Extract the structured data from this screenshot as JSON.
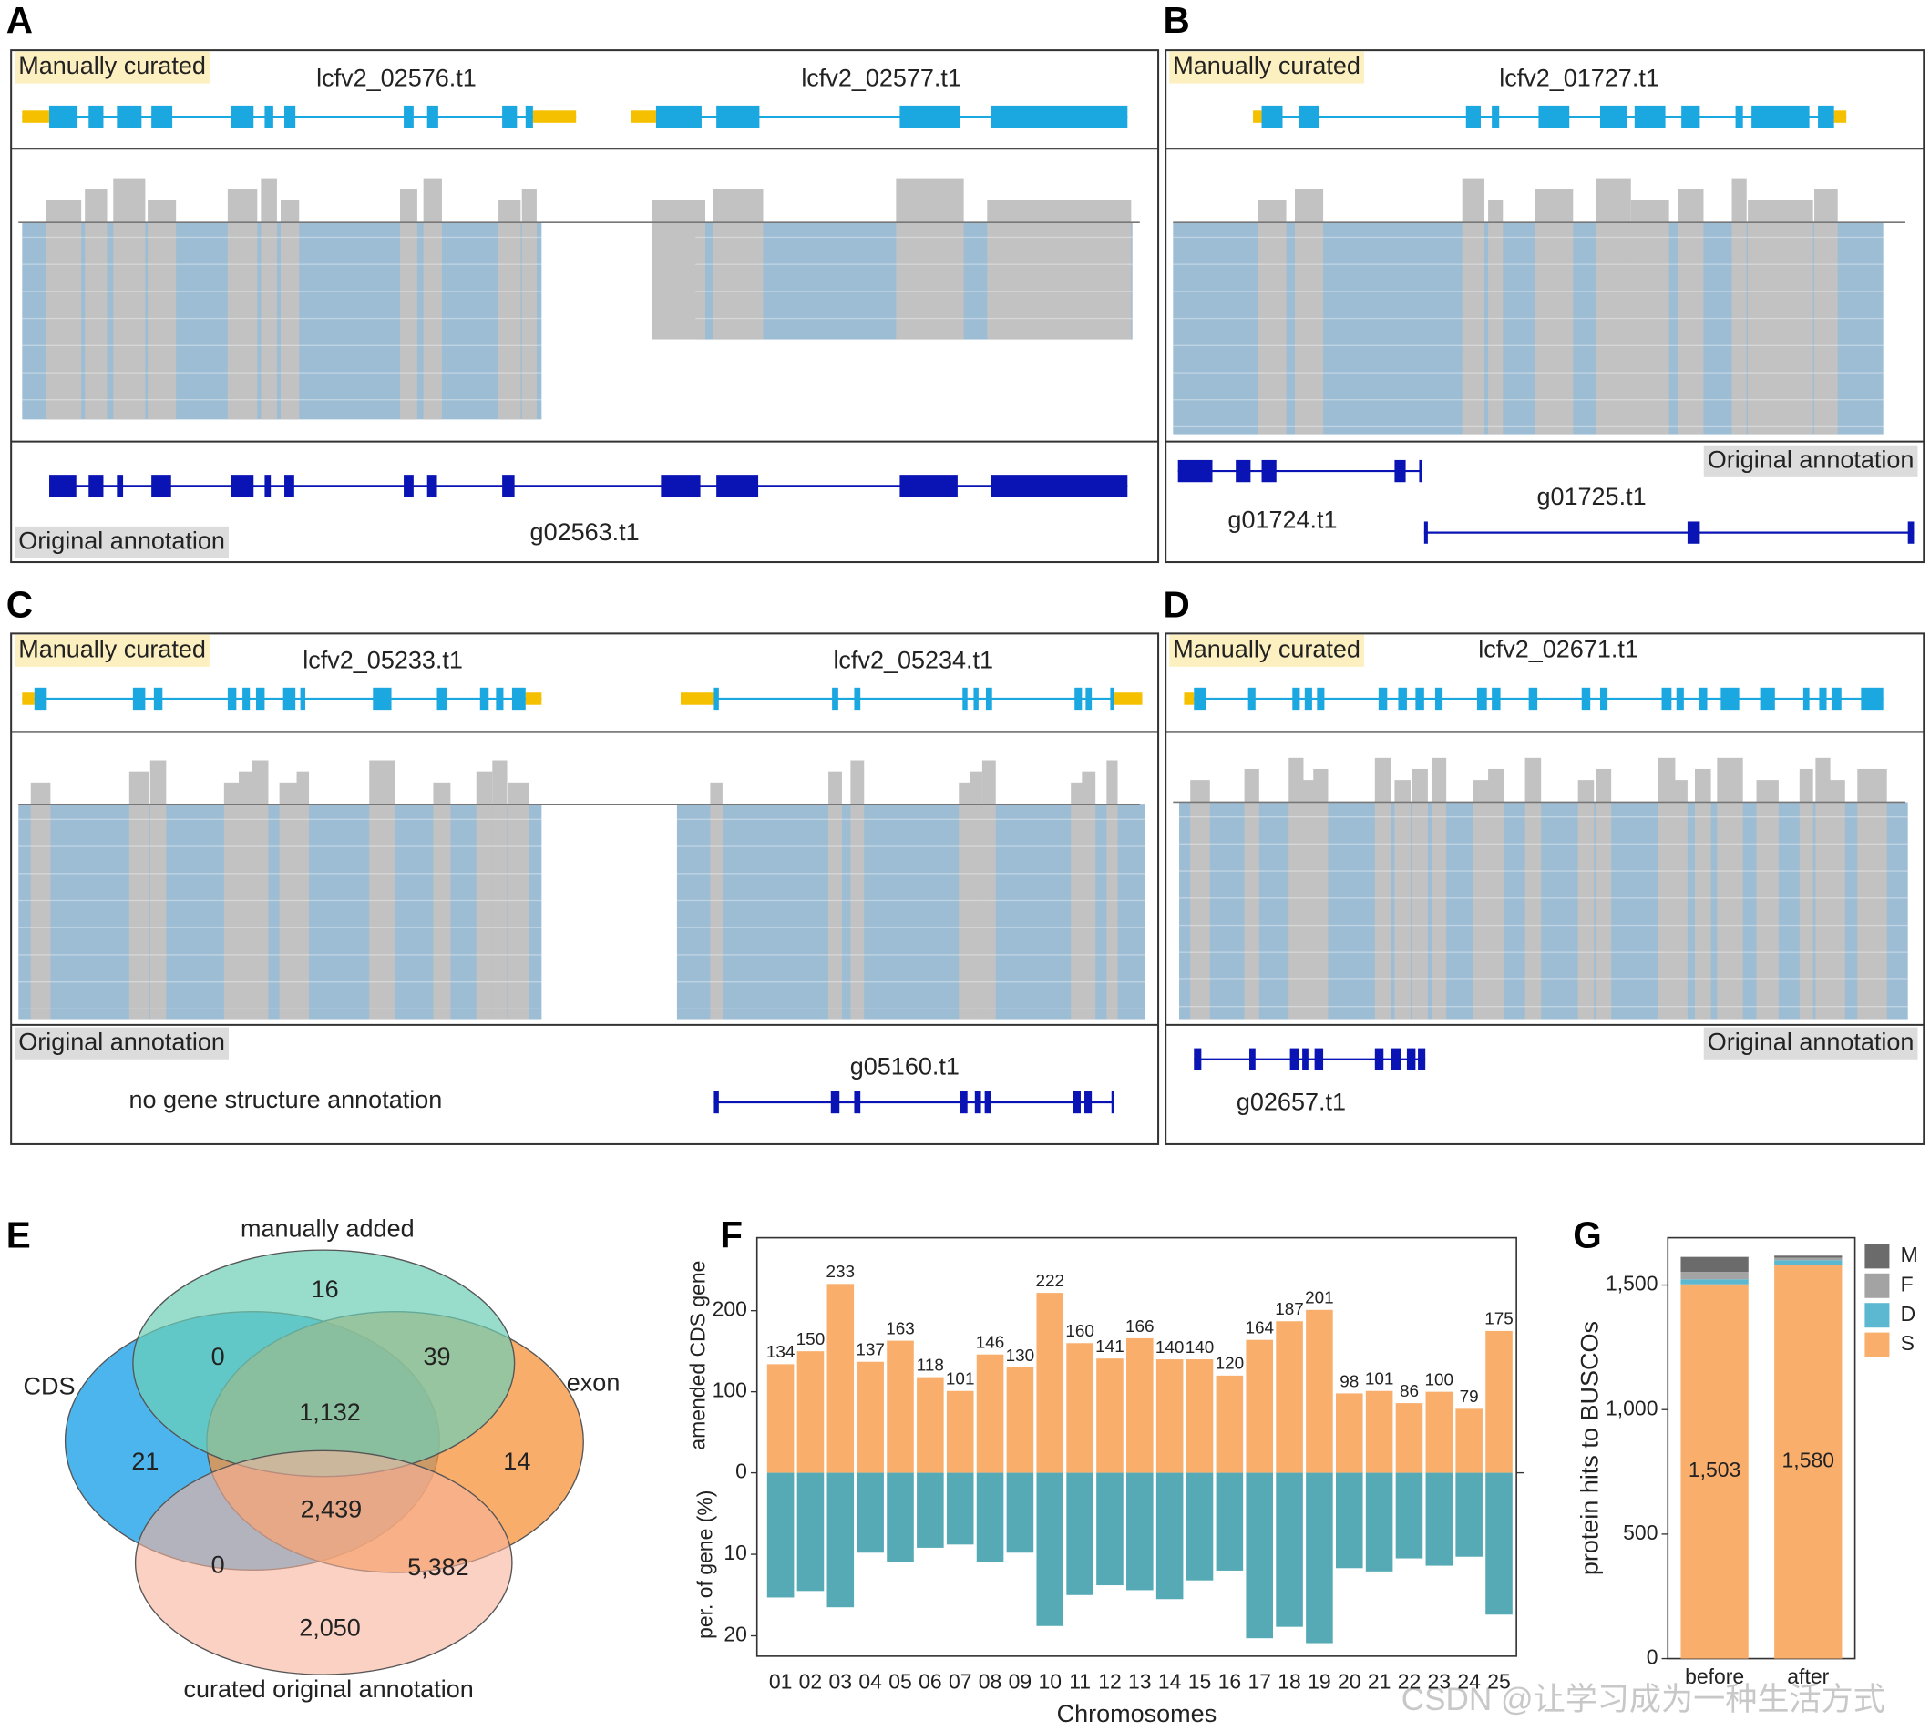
{
  "panels": [
    {
      "letter": "A",
      "curated_label": "Manually curated",
      "curated_genes": [
        "lcfv2_02576.t1",
        "lcfv2_02577.t1"
      ],
      "original_label": "Original annotation",
      "original_genes": [
        "g02563.t1"
      ]
    },
    {
      "letter": "B",
      "curated_label": "Manually curated",
      "curated_genes": [
        "lcfv2_01727.t1"
      ],
      "original_label": "Original annotation",
      "original_genes": [
        "g01724.t1",
        "g01725.t1"
      ]
    },
    {
      "letter": "C",
      "curated_label": "Manually curated",
      "curated_genes": [
        "lcfv2_05233.t1",
        "lcfv2_05234.t1"
      ],
      "original_label": "Original annotation",
      "original_genes": [
        "g05160.t1"
      ],
      "note": "no gene structure annotation"
    },
    {
      "letter": "D",
      "curated_label": "Manually curated",
      "curated_genes": [
        "lcfv2_02671.t1"
      ],
      "original_label": "Original annotation",
      "original_genes": [
        "g02657.t1"
      ]
    }
  ],
  "venn": {
    "letter": "E",
    "sets": [
      "manually added",
      "CDS",
      "exon",
      "curated original annotation"
    ],
    "counts": [
      "16",
      "0",
      "39",
      "1,132",
      "21",
      "14",
      "2,439",
      "0",
      "5,382",
      "2,050"
    ]
  },
  "chart_data": [
    {
      "type": "mirrored_bar",
      "panel_label": "F",
      "xlabel": "Chromosomes",
      "categories": [
        "01",
        "02",
        "03",
        "04",
        "05",
        "06",
        "07",
        "08",
        "09",
        "10",
        "11",
        "12",
        "13",
        "14",
        "15",
        "16",
        "17",
        "18",
        "19",
        "20",
        "21",
        "22",
        "23",
        "24",
        "25"
      ],
      "series": [
        {
          "ylabel": "amended CDS gene",
          "direction": "up",
          "color": "#f9ae6c",
          "values": [
            134,
            150,
            233,
            137,
            163,
            118,
            101,
            146,
            130,
            222,
            160,
            141,
            166,
            140,
            140,
            120,
            164,
            187,
            201,
            98,
            101,
            86,
            100,
            79,
            175
          ],
          "ylim": [
            0,
            290
          ],
          "yticks": [
            0,
            100,
            200
          ]
        },
        {
          "ylabel": "per. of gene (%)",
          "direction": "down",
          "color": "#55aab5",
          "values": [
            15.3,
            14.5,
            16.5,
            9.8,
            11,
            9.2,
            8.8,
            10.9,
            9.8,
            18.8,
            15,
            13.8,
            14.4,
            15.5,
            13.2,
            12,
            20.3,
            18.9,
            20.9,
            11.7,
            12.1,
            10.5,
            11.4,
            10.3,
            17.4
          ],
          "ylim": [
            0,
            22.5
          ],
          "yticks": [
            10,
            20
          ]
        }
      ]
    },
    {
      "type": "stacked_bar",
      "panel_label": "G",
      "ylabel": "protein hits to BUSCOs",
      "categories": [
        "before",
        "after"
      ],
      "series": [
        {
          "name": "S",
          "color": "#f9ae6c",
          "values": [
            1503,
            1580
          ],
          "value_labels": [
            "1,503",
            "1,580"
          ]
        },
        {
          "name": "D",
          "color": "#5bb8d0",
          "values": [
            20,
            20
          ]
        },
        {
          "name": "F",
          "color": "#a3a3a3",
          "values": [
            30,
            10
          ]
        },
        {
          "name": "M",
          "color": "#6b6b6b",
          "values": [
            60,
            8
          ]
        }
      ],
      "ylim": [
        0,
        1690
      ],
      "yticks": [
        0,
        500,
        {
          "value": 1000,
          "label": "1,000"
        },
        {
          "value": 1500,
          "label": "1,500"
        }
      ],
      "legend": "right"
    }
  ],
  "watermark": "CSDN @让学习成为一种生活方式"
}
